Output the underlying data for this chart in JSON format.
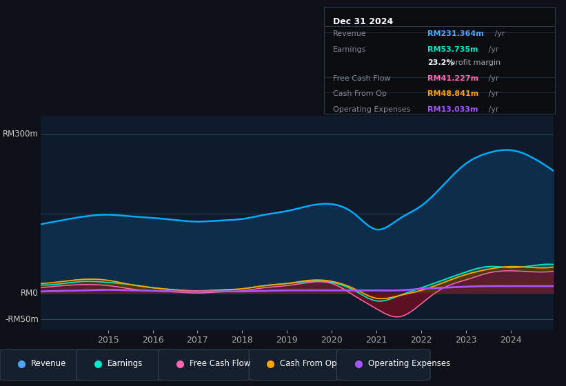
{
  "bg_color": "#0d1117",
  "plot_bg_color": "#0d1b2a",
  "title": "Dec 31 2024",
  "info_box_rows": [
    {
      "label": "Revenue",
      "value": "RM231.364m",
      "color": "#4da6ff"
    },
    {
      "label": "Earnings",
      "value": "RM53.735m",
      "color": "#00e5cc"
    },
    {
      "label": "",
      "value": "23.2% profit margin",
      "color": "#ffffff"
    },
    {
      "label": "Free Cash Flow",
      "value": "RM41.227m",
      "color": "#ff69b4"
    },
    {
      "label": "Cash From Op",
      "value": "RM48.841m",
      "color": "#ffa500"
    },
    {
      "label": "Operating Expenses",
      "value": "RM13.033m",
      "color": "#a855f7"
    }
  ],
  "ylabel_top": "RM300m",
  "ylabel_mid": "RM0",
  "ylabel_bot": "-RM50m",
  "x_ticks": [
    2015,
    2016,
    2017,
    2018,
    2019,
    2020,
    2021,
    2022,
    2023,
    2024
  ],
  "legend": [
    {
      "label": "Revenue",
      "color": "#4da6ff"
    },
    {
      "label": "Earnings",
      "color": "#00e5cc"
    },
    {
      "label": "Free Cash Flow",
      "color": "#ff69b4"
    },
    {
      "label": "Cash From Op",
      "color": "#ffa500"
    },
    {
      "label": "Operating Expenses",
      "color": "#a855f7"
    }
  ],
  "x_years": [
    2013.5,
    2014.0,
    2014.5,
    2015.0,
    2015.5,
    2016.0,
    2016.5,
    2017.0,
    2017.5,
    2018.0,
    2018.5,
    2019.0,
    2019.5,
    2020.0,
    2020.5,
    2021.0,
    2021.5,
    2022.0,
    2022.5,
    2023.0,
    2023.5,
    2024.0,
    2024.5,
    2024.95
  ],
  "revenue": [
    130,
    138,
    145,
    148,
    145,
    142,
    138,
    135,
    137,
    140,
    148,
    155,
    165,
    168,
    150,
    120,
    140,
    165,
    205,
    245,
    265,
    270,
    255,
    231
  ],
  "earnings": [
    15,
    18,
    22,
    20,
    16,
    10,
    6,
    4,
    5,
    8,
    14,
    18,
    22,
    20,
    5,
    -15,
    -5,
    10,
    25,
    40,
    50,
    48,
    52,
    54
  ],
  "free_cash_flow": [
    10,
    14,
    16,
    14,
    8,
    4,
    2,
    0,
    2,
    4,
    10,
    14,
    20,
    18,
    -5,
    -30,
    -45,
    -20,
    10,
    25,
    38,
    42,
    40,
    41
  ],
  "cash_from_op": [
    18,
    22,
    26,
    24,
    16,
    10,
    6,
    4,
    6,
    8,
    14,
    18,
    24,
    22,
    8,
    -10,
    -5,
    5,
    20,
    35,
    45,
    50,
    48,
    49
  ],
  "operating_expenses": [
    3,
    4,
    5,
    6,
    5,
    4,
    3,
    3,
    3,
    3,
    4,
    5,
    5,
    5,
    5,
    5,
    5,
    8,
    10,
    12,
    13,
    13,
    13,
    13
  ]
}
